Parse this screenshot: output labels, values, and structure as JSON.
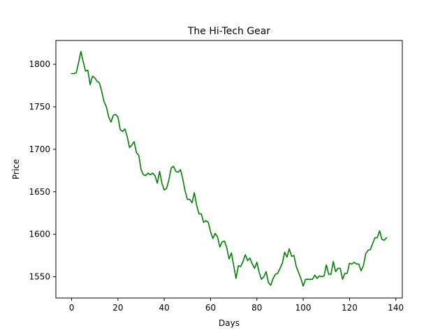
{
  "chart_data": {
    "type": "line",
    "title": "The Hi-Tech Gear",
    "xlabel": "Days",
    "ylabel": "Price",
    "xlim": [
      -6.8,
      142.8
    ],
    "ylim": [
      1525,
      1828
    ],
    "xticks": [
      0,
      20,
      40,
      60,
      80,
      100,
      120,
      140
    ],
    "yticks": [
      1550,
      1600,
      1650,
      1700,
      1750,
      1800
    ],
    "grid": false,
    "legend": "none",
    "colors": {
      "line": "#008000",
      "axes": "#000000",
      "background": "#ffffff"
    },
    "series": [
      {
        "values": [
          1789,
          1789,
          1790,
          1802,
          1815,
          1803,
          1792,
          1793,
          1776,
          1786,
          1784,
          1780,
          1778,
          1768,
          1756,
          1750,
          1738,
          1732,
          1740,
          1741,
          1738,
          1723,
          1721,
          1724,
          1715,
          1702,
          1705,
          1709,
          1696,
          1693,
          1676,
          1670,
          1669,
          1672,
          1670,
          1672,
          1669,
          1660,
          1674,
          1660,
          1652,
          1654,
          1664,
          1678,
          1680,
          1674,
          1673,
          1676,
          1665,
          1651,
          1641,
          1641,
          1637,
          1649,
          1634,
          1624,
          1624,
          1614,
          1616,
          1614,
          1603,
          1595,
          1601,
          1597,
          1585,
          1591,
          1592,
          1584,
          1571,
          1578,
          1563,
          1548,
          1563,
          1562,
          1568,
          1576,
          1569,
          1572,
          1565,
          1560,
          1567,
          1555,
          1547,
          1550,
          1556,
          1543,
          1540,
          1548,
          1553,
          1554,
          1560,
          1566,
          1579,
          1573,
          1583,
          1574,
          1575,
          1562,
          1555,
          1548,
          1539,
          1547,
          1547,
          1547,
          1547,
          1552,
          1548,
          1551,
          1550,
          1551,
          1564,
          1553,
          1553,
          1568,
          1556,
          1560,
          1560,
          1547,
          1554,
          1554,
          1566,
          1565,
          1567,
          1565,
          1565,
          1557,
          1563,
          1577,
          1581,
          1582,
          1589,
          1596,
          1596,
          1604,
          1594,
          1593,
          1596
        ]
      }
    ]
  }
}
